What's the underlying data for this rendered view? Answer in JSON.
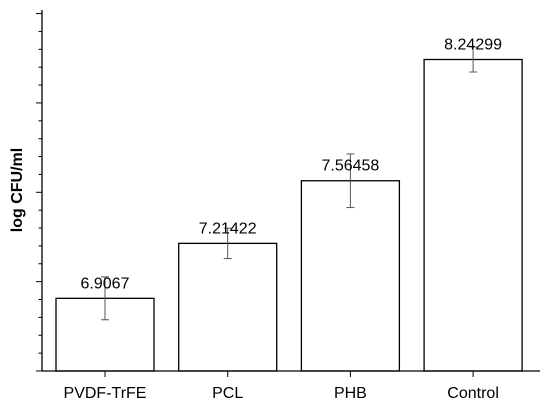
{
  "chart_data": {
    "type": "bar",
    "title": "",
    "xlabel": "",
    "ylabel": "log CFU/ml",
    "categories": [
      "PVDF-TrFE",
      "PCL",
      "PHB",
      "Control"
    ],
    "values": [
      6.9067,
      7.21422,
      7.56458,
      8.24299
    ],
    "value_labels": [
      "6.9067",
      "7.21422",
      "7.56458",
      "8.24299"
    ],
    "error": [
      0.12,
      0.085,
      0.15,
      0.07
    ],
    "ylim": [
      6.5,
      8.52
    ],
    "y_minor_step": 0.1,
    "y_major_step": 0.5,
    "y_tick_labels_shown": false,
    "grid": false,
    "legend": "none",
    "bar_fill": "#ffffff",
    "bar_stroke": "#000000",
    "error_color": "#555555"
  }
}
